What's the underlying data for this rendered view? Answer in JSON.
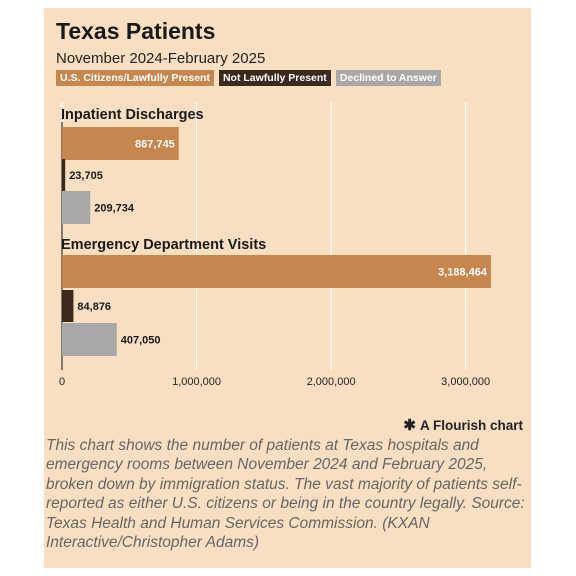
{
  "header": {
    "title": "Texas Patients",
    "subtitle": "November 2024-February 2025"
  },
  "legend": [
    {
      "label": "U.S. Citizens/Lawfully Present",
      "color": "#c8864f"
    },
    {
      "label": "Not Lawfully Present",
      "color": "#3d2a1e"
    },
    {
      "label": "Declined to Answer",
      "color": "#a8a8a8"
    }
  ],
  "chart_data": {
    "type": "bar",
    "orientation": "horizontal",
    "xlim": [
      0,
      3188464
    ],
    "ticks": [
      {
        "value": 0,
        "label": "0"
      },
      {
        "value": 1000000,
        "label": "1,000,000"
      },
      {
        "value": 2000000,
        "label": "2,000,000"
      },
      {
        "value": 3000000,
        "label": "3,000,000"
      }
    ],
    "groups": [
      {
        "label": "Inpatient Discharges",
        "bars": [
          {
            "series": "U.S. Citizens/Lawfully Present",
            "value": 867745,
            "label": "867,745"
          },
          {
            "series": "Not Lawfully Present",
            "value": 23705,
            "label": "23,705"
          },
          {
            "series": "Declined to Answer",
            "value": 209734,
            "label": "209,734"
          }
        ]
      },
      {
        "label": "Emergency Department Visits",
        "bars": [
          {
            "series": "U.S. Citizens/Lawfully Present",
            "value": 3188464,
            "label": "3,188,464"
          },
          {
            "series": "Not Lawfully Present",
            "value": 84876,
            "label": "84,876"
          },
          {
            "series": "Declined to Answer",
            "value": 407050,
            "label": "407,050"
          }
        ]
      }
    ],
    "grid": true
  },
  "footer": {
    "credit": "A Flourish chart",
    "caption": "This chart shows the number of patients at Texas hospitals and emergency rooms between November 2024 and February 2025, broken down by immigration status. The vast majority of patients self-reported as either U.S. citizens or being in the country legally. Source: Texas Health and Human Services Commission. (KXAN Interactive/Christopher Adams)"
  }
}
